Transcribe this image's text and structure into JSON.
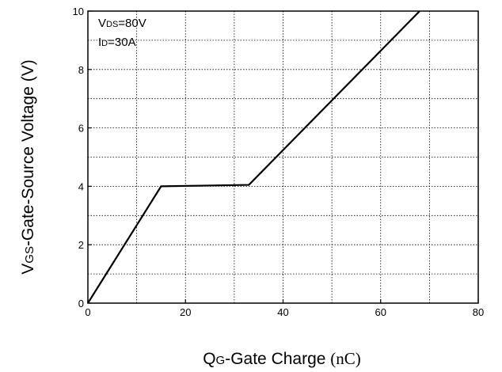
{
  "chart_data": {
    "type": "line",
    "title": "",
    "xlabel": {
      "main": "Q",
      "sub": "G",
      "rest": "-Gate Charge ",
      "unit": "(nC)"
    },
    "ylabel": {
      "main": "V",
      "sub": "GS",
      "rest": "-Gate-Source Voltage (V)"
    },
    "xlim": [
      0,
      80
    ],
    "ylim": [
      0,
      10
    ],
    "x_major_ticks": [
      0,
      20,
      40,
      60,
      80
    ],
    "y_major_ticks": [
      0,
      2,
      4,
      6,
      8,
      10
    ],
    "x_grid": [
      10,
      20,
      30,
      40,
      50,
      60,
      70
    ],
    "y_grid": [
      1,
      2,
      3,
      4,
      5,
      6,
      7,
      8,
      9
    ],
    "grid": "dotted",
    "annotations": [
      {
        "main": "V",
        "sub": "DS",
        "rest": "=80V"
      },
      {
        "main": "I",
        "sub": "D",
        "rest": "=30A"
      }
    ],
    "series": [
      {
        "x": [
          0,
          15,
          33,
          68
        ],
        "y": [
          0,
          4.0,
          4.05,
          10
        ]
      }
    ]
  }
}
